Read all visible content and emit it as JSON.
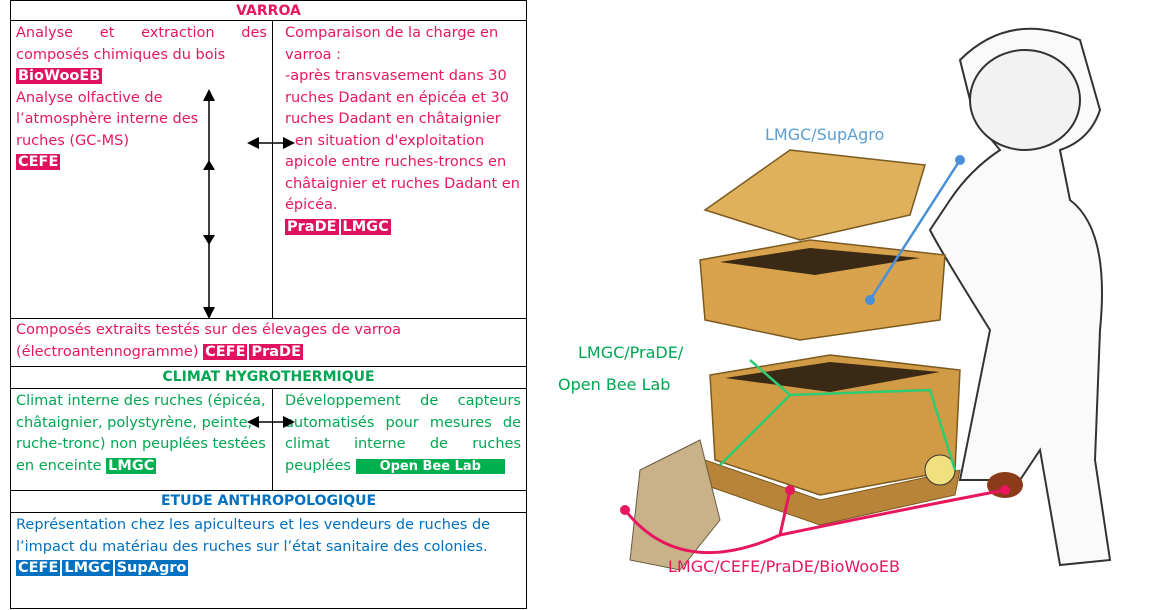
{
  "table": {
    "sections": [
      {
        "title": "VARROA",
        "left": [
          "Analyse et extraction des composés chimiques du bois",
          "BioWooEB",
          "Analyse olfactive de l’atmosphère interne des ruches (GC-MS)",
          "CEFE"
        ],
        "right": [
          "Comparaison de la charge en varroa :",
          "-après transvasement dans 30 ruches Dadant en épicéa et 30 ruches Dadant en châtaignier",
          "- en situation d'exploitation apicole entre ruches-troncs en châtaignier et ruches Dadant en épicéa."
        ],
        "right_tags": [
          "PraDE",
          "LMGC"
        ],
        "full": "Composés extraits testés sur des élevages de varroa (électroantennogramme)",
        "full_tags": [
          "CEFE",
          "PraDE"
        ]
      },
      {
        "title": "CLIMAT HYGROTHERMIQUE",
        "left": "Climat interne des ruches (épicéa, châtaignier, polystyrène, peinte, ruche-tronc) non peuplées testées en enceinte",
        "left_tag": "LMGC",
        "right": "Développement de capteurs automatisés pour mesures de climat interne de ruches peuplées",
        "right_tag": "Open Bee Lab"
      },
      {
        "title": "ETUDE ANTHROPOLOGIQUE",
        "full": "Représentation chez les apiculteurs et les vendeurs de ruches de l’impact du matériau des ruches sur l’état sanitaire des colonies.",
        "full_tags": [
          "CEFE",
          "LMGC",
          "SupAgro"
        ]
      }
    ]
  },
  "illustration": {
    "labels": [
      "LMGC/SupAgro",
      "LMGC/PraDE/",
      "Open Bee Lab",
      "LMGC/CEFE/PraDE/BioWooEB"
    ]
  }
}
